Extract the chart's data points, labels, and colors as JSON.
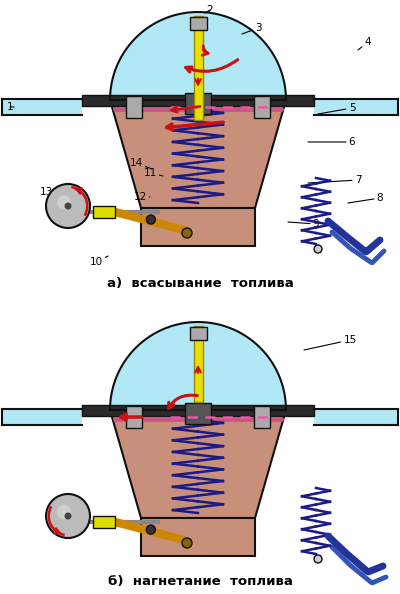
{
  "title_a": "а)  всасывание  топлива",
  "title_b": "б)  нагнетание  топлива",
  "bg": "#ffffff",
  "c_cyan": "#b0e8f5",
  "c_cyan_grad": "#d8f4fb",
  "c_pink_body": "#c8907a",
  "c_pink_light": "#e0b0a0",
  "c_dark": "#111111",
  "c_yellow": "#e8de00",
  "c_dkblue": "#1a1a88",
  "c_red": "#cc1111",
  "c_navy": "#223399",
  "c_gold": "#cc8800",
  "c_gray": "#999999",
  "c_pink_memb": "#cc5588",
  "c_silver": "#aaaaaa"
}
